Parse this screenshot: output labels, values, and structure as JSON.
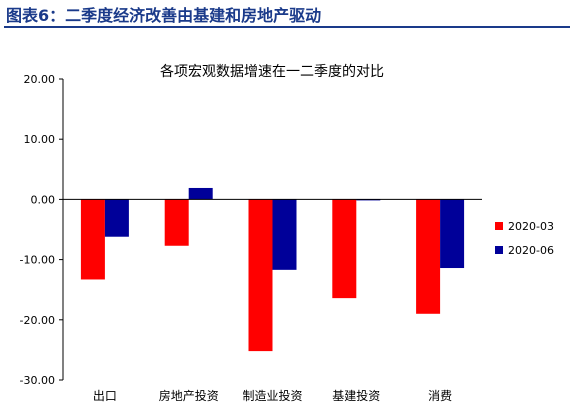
{
  "figure": {
    "title": "图表6：二季度经济改善由基建和房地产驱动",
    "accent_color": "#1a3a8a"
  },
  "chart_data": {
    "type": "bar",
    "title": "各项宏观数据增速在一二季度的对比",
    "categories": [
      "出口",
      "房地产投资",
      "制造业投资",
      "基建投资",
      "消费"
    ],
    "series": [
      {
        "name": "2020-03",
        "color": "#ff0000",
        "values": [
          -13.3,
          -7.7,
          -25.2,
          -16.4,
          -19.0
        ]
      },
      {
        "name": "2020-06",
        "color": "#000099",
        "values": [
          -6.2,
          1.9,
          -11.7,
          -0.1,
          -11.4
        ]
      }
    ],
    "ylim": [
      -30,
      20
    ],
    "yticks": [
      20,
      10,
      0,
      -10,
      -20,
      -30
    ],
    "ytick_labels": [
      "20.00",
      "10.00",
      "0.00",
      "-10.00",
      "-20.00",
      "-30.00"
    ],
    "xlabel": "",
    "ylabel": "",
    "legend_position": "right",
    "grid": false
  }
}
